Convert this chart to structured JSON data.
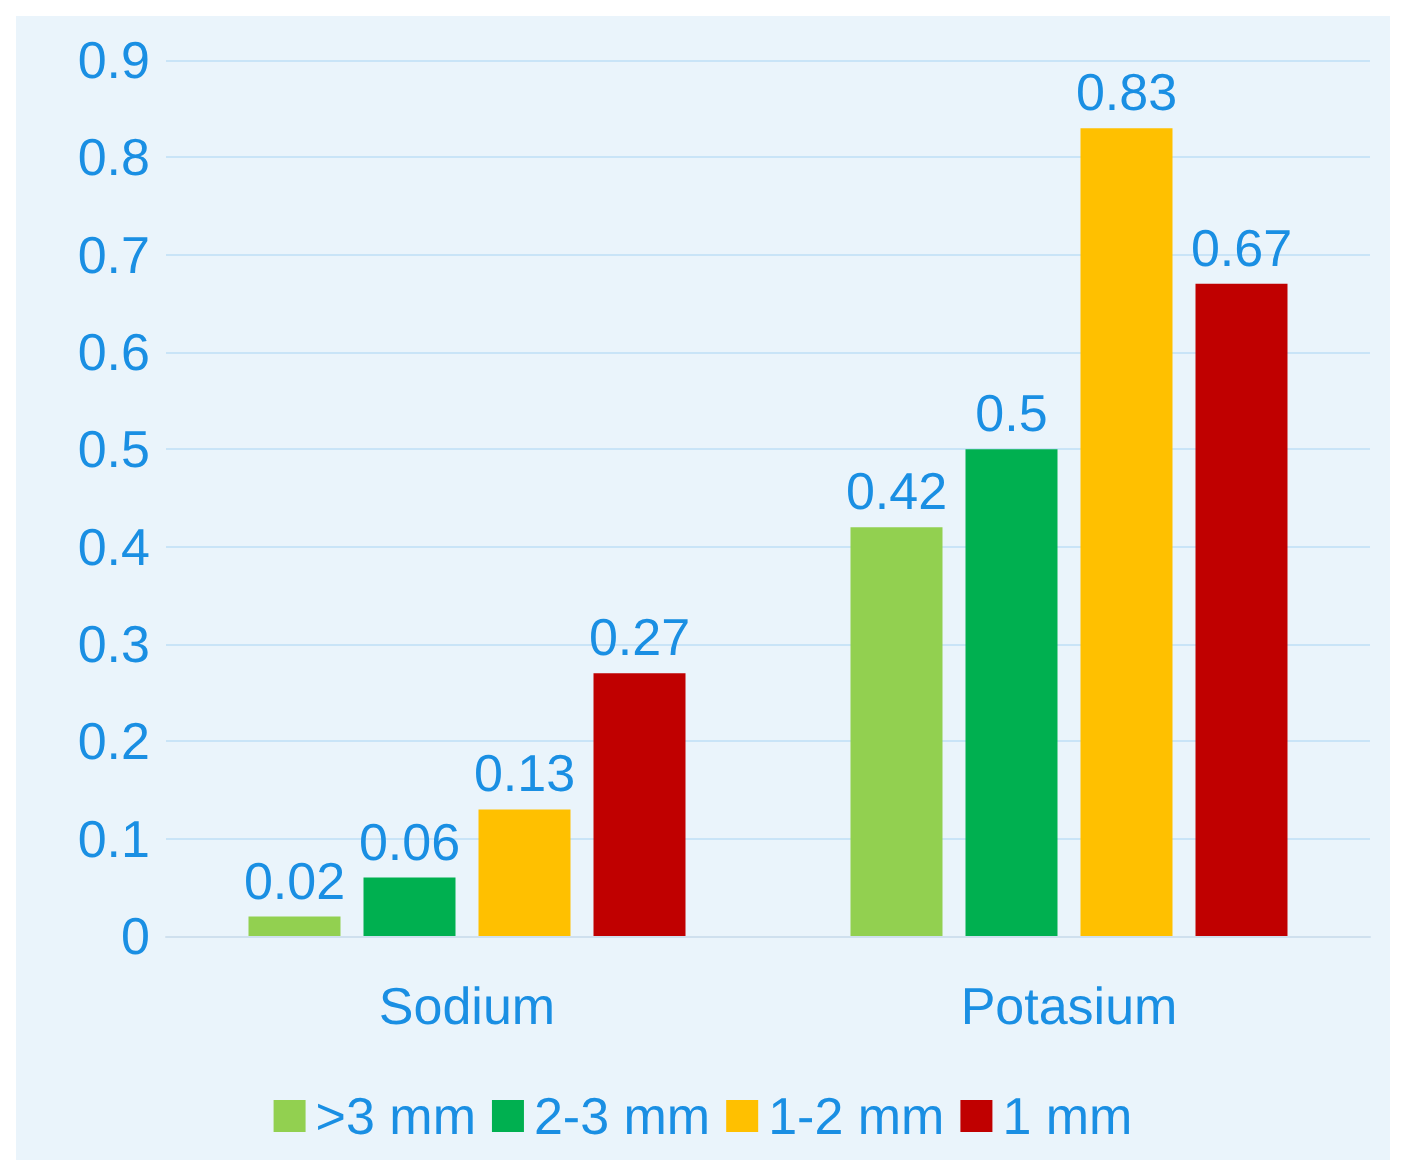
{
  "chart_data": {
    "type": "bar",
    "categories": [
      "Sodium",
      "Potasium"
    ],
    "series": [
      {
        "name": ">3 mm",
        "color": "#92d050",
        "values": [
          0.02,
          0.42
        ]
      },
      {
        "name": "2-3 mm",
        "color": "#00b050",
        "values": [
          0.06,
          0.5
        ]
      },
      {
        "name": "1-2 mm",
        "color": "#ffc000",
        "values": [
          0.13,
          0.83
        ]
      },
      {
        "name": "1 mm",
        "color": "#c00000",
        "values": [
          0.27,
          0.67
        ]
      }
    ],
    "ylim": [
      0,
      0.9
    ],
    "yticks": [
      0,
      0.1,
      0.2,
      0.3,
      0.4,
      0.5,
      0.6,
      0.7,
      0.8,
      0.9
    ],
    "grid": "y",
    "legend": "bottom",
    "data_labels": true
  }
}
